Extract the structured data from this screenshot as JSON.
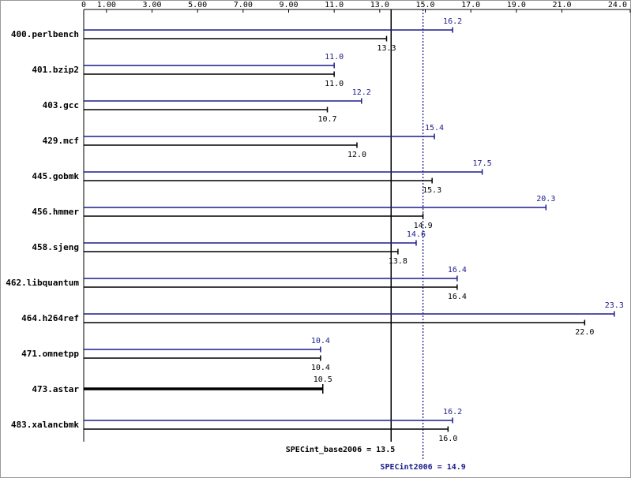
{
  "chart_data": {
    "type": "spec-bars",
    "categories": [
      "400.perlbench",
      "401.bzip2",
      "403.gcc",
      "429.mcf",
      "445.gobmk",
      "456.hmmer",
      "458.sjeng",
      "462.libquantum",
      "464.h264ref",
      "471.omnetpp",
      "473.astar",
      "483.xalancbmk"
    ],
    "series": [
      {
        "color": "#1c1c8c",
        "values": [
          16.2,
          11.0,
          12.2,
          15.4,
          17.5,
          20.3,
          14.6,
          16.4,
          23.3,
          10.4,
          null,
          16.2
        ],
        "value_labels": [
          "16.2",
          "11.0",
          "12.2",
          "15.4",
          "17.5",
          "20.3",
          "14.6",
          "16.4",
          "23.3",
          "10.4",
          null,
          "16.2"
        ]
      },
      {
        "color": "#000000",
        "values": [
          13.3,
          11.0,
          10.7,
          12.0,
          15.3,
          14.9,
          13.8,
          16.4,
          22.0,
          10.4,
          10.5,
          16.0
        ],
        "value_labels": [
          "13.3",
          "11.0",
          "10.7",
          "12.0",
          "15.3",
          "14.9",
          "13.8",
          "16.4",
          "22.0",
          "10.4",
          "10.5",
          "16.0"
        ]
      }
    ],
    "xlim": [
      0,
      24
    ],
    "xticks": [
      0,
      {
        "value": 1,
        "label": "1.00"
      },
      {
        "value": 3,
        "label": "3.00"
      },
      {
        "value": 5,
        "label": "5.00"
      },
      {
        "value": 7,
        "label": "7.00"
      },
      {
        "value": 9,
        "label": "9.00"
      },
      {
        "value": 11,
        "label": "11.0"
      },
      {
        "value": 13,
        "label": "13.0"
      },
      {
        "value": 15,
        "label": "15.0"
      },
      {
        "value": 17,
        "label": "17.0"
      },
      {
        "value": 19,
        "label": "19.0"
      },
      {
        "value": 21,
        "label": "21.0"
      },
      {
        "value": 24,
        "label": "24.0"
      }
    ],
    "reference_lines": [
      {
        "label": "SPECint_base2006 = 13.5",
        "value": 13.5,
        "color": "#000000",
        "style": "solid"
      },
      {
        "label": "SPECint2006 = 14.9",
        "value": 14.9,
        "color": "#1c1c8c",
        "style": "dotted"
      }
    ]
  }
}
